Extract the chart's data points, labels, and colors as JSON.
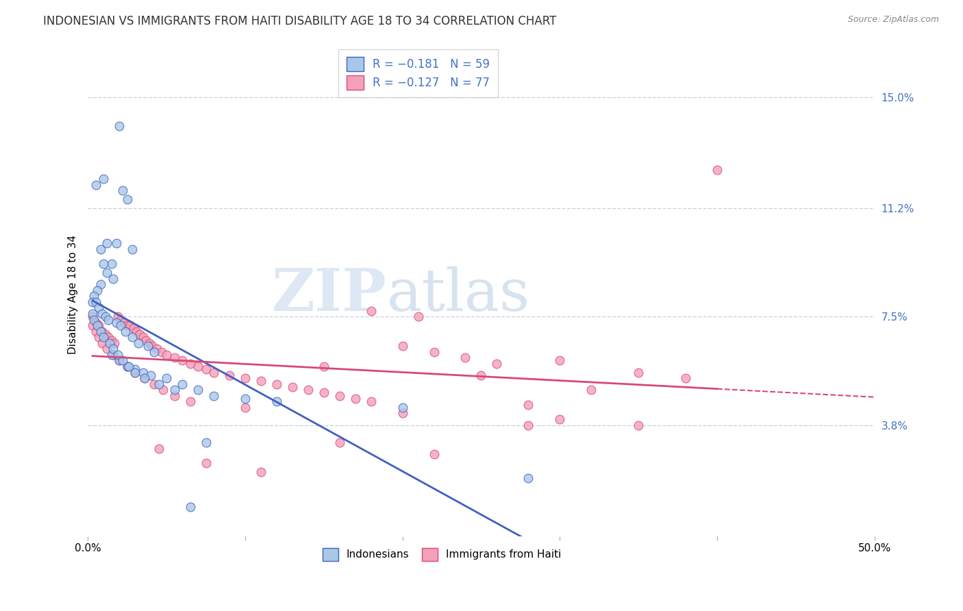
{
  "title": "INDONESIAN VS IMMIGRANTS FROM HAITI DISABILITY AGE 18 TO 34 CORRELATION CHART",
  "source": "Source: ZipAtlas.com",
  "ylabel": "Disability Age 18 to 34",
  "xlim": [
    0.0,
    0.5
  ],
  "ylim": [
    0.0,
    0.165
  ],
  "xticks": [
    0.0,
    0.1,
    0.2,
    0.3,
    0.4,
    0.5
  ],
  "xticklabels": [
    "0.0%",
    "",
    "",
    "",
    "",
    "50.0%"
  ],
  "ytick_positions": [
    0.038,
    0.075,
    0.112,
    0.15
  ],
  "ytick_labels": [
    "3.8%",
    "7.5%",
    "11.2%",
    "15.0%"
  ],
  "legend_r1": "-0.181",
  "legend_n1": "59",
  "legend_r2": "-0.127",
  "legend_n2": "77",
  "color_indonesian": "#a8c8e8",
  "color_haiti": "#f4a0b8",
  "color_line_indonesian": "#4060c0",
  "color_line_haiti": "#d84878",
  "color_tick_right": "#4472c4",
  "background_color": "#ffffff",
  "grid_color": "#c8d4e8",
  "watermark_zip": "ZIP",
  "watermark_atlas": "atlas",
  "indonesian_x": [
    0.02,
    0.01,
    0.005,
    0.022,
    0.025,
    0.028,
    0.008,
    0.012,
    0.018,
    0.015,
    0.01,
    0.012,
    0.016,
    0.008,
    0.006,
    0.004,
    0.003,
    0.005,
    0.007,
    0.009,
    0.011,
    0.013,
    0.018,
    0.021,
    0.024,
    0.028,
    0.032,
    0.038,
    0.042,
    0.015,
    0.02,
    0.025,
    0.03,
    0.035,
    0.04,
    0.05,
    0.06,
    0.07,
    0.08,
    0.1,
    0.12,
    0.2,
    0.28,
    0.003,
    0.004,
    0.006,
    0.008,
    0.01,
    0.014,
    0.016,
    0.019,
    0.022,
    0.026,
    0.03,
    0.036,
    0.045,
    0.055,
    0.065,
    0.075
  ],
  "indonesian_y": [
    0.14,
    0.122,
    0.12,
    0.118,
    0.115,
    0.098,
    0.098,
    0.1,
    0.1,
    0.093,
    0.093,
    0.09,
    0.088,
    0.086,
    0.084,
    0.082,
    0.08,
    0.08,
    0.078,
    0.076,
    0.075,
    0.074,
    0.073,
    0.072,
    0.07,
    0.068,
    0.066,
    0.065,
    0.063,
    0.062,
    0.06,
    0.058,
    0.057,
    0.056,
    0.055,
    0.054,
    0.052,
    0.05,
    0.048,
    0.047,
    0.046,
    0.044,
    0.02,
    0.076,
    0.074,
    0.072,
    0.07,
    0.068,
    0.066,
    0.064,
    0.062,
    0.06,
    0.058,
    0.056,
    0.054,
    0.052,
    0.05,
    0.01,
    0.032
  ],
  "haiti_x": [
    0.003,
    0.005,
    0.007,
    0.009,
    0.011,
    0.013,
    0.015,
    0.017,
    0.019,
    0.021,
    0.023,
    0.025,
    0.027,
    0.029,
    0.031,
    0.033,
    0.035,
    0.037,
    0.039,
    0.041,
    0.044,
    0.047,
    0.05,
    0.055,
    0.06,
    0.065,
    0.07,
    0.075,
    0.08,
    0.09,
    0.1,
    0.11,
    0.12,
    0.13,
    0.14,
    0.15,
    0.16,
    0.17,
    0.18,
    0.2,
    0.22,
    0.24,
    0.26,
    0.3,
    0.35,
    0.38,
    0.003,
    0.005,
    0.007,
    0.009,
    0.012,
    0.016,
    0.02,
    0.025,
    0.03,
    0.036,
    0.042,
    0.048,
    0.055,
    0.065,
    0.1,
    0.2,
    0.3,
    0.25,
    0.15,
    0.18,
    0.21,
    0.35,
    0.28,
    0.32,
    0.045,
    0.075,
    0.11,
    0.16,
    0.22,
    0.28,
    0.4
  ],
  "haiti_y": [
    0.075,
    0.073,
    0.072,
    0.07,
    0.069,
    0.068,
    0.067,
    0.066,
    0.075,
    0.074,
    0.073,
    0.072,
    0.072,
    0.071,
    0.07,
    0.069,
    0.068,
    0.067,
    0.066,
    0.065,
    0.064,
    0.063,
    0.062,
    0.061,
    0.06,
    0.059,
    0.058,
    0.057,
    0.056,
    0.055,
    0.054,
    0.053,
    0.052,
    0.051,
    0.05,
    0.049,
    0.048,
    0.047,
    0.046,
    0.065,
    0.063,
    0.061,
    0.059,
    0.06,
    0.056,
    0.054,
    0.072,
    0.07,
    0.068,
    0.066,
    0.064,
    0.062,
    0.06,
    0.058,
    0.056,
    0.054,
    0.052,
    0.05,
    0.048,
    0.046,
    0.044,
    0.042,
    0.04,
    0.055,
    0.058,
    0.077,
    0.075,
    0.038,
    0.045,
    0.05,
    0.03,
    0.025,
    0.022,
    0.032,
    0.028,
    0.038,
    0.125
  ]
}
